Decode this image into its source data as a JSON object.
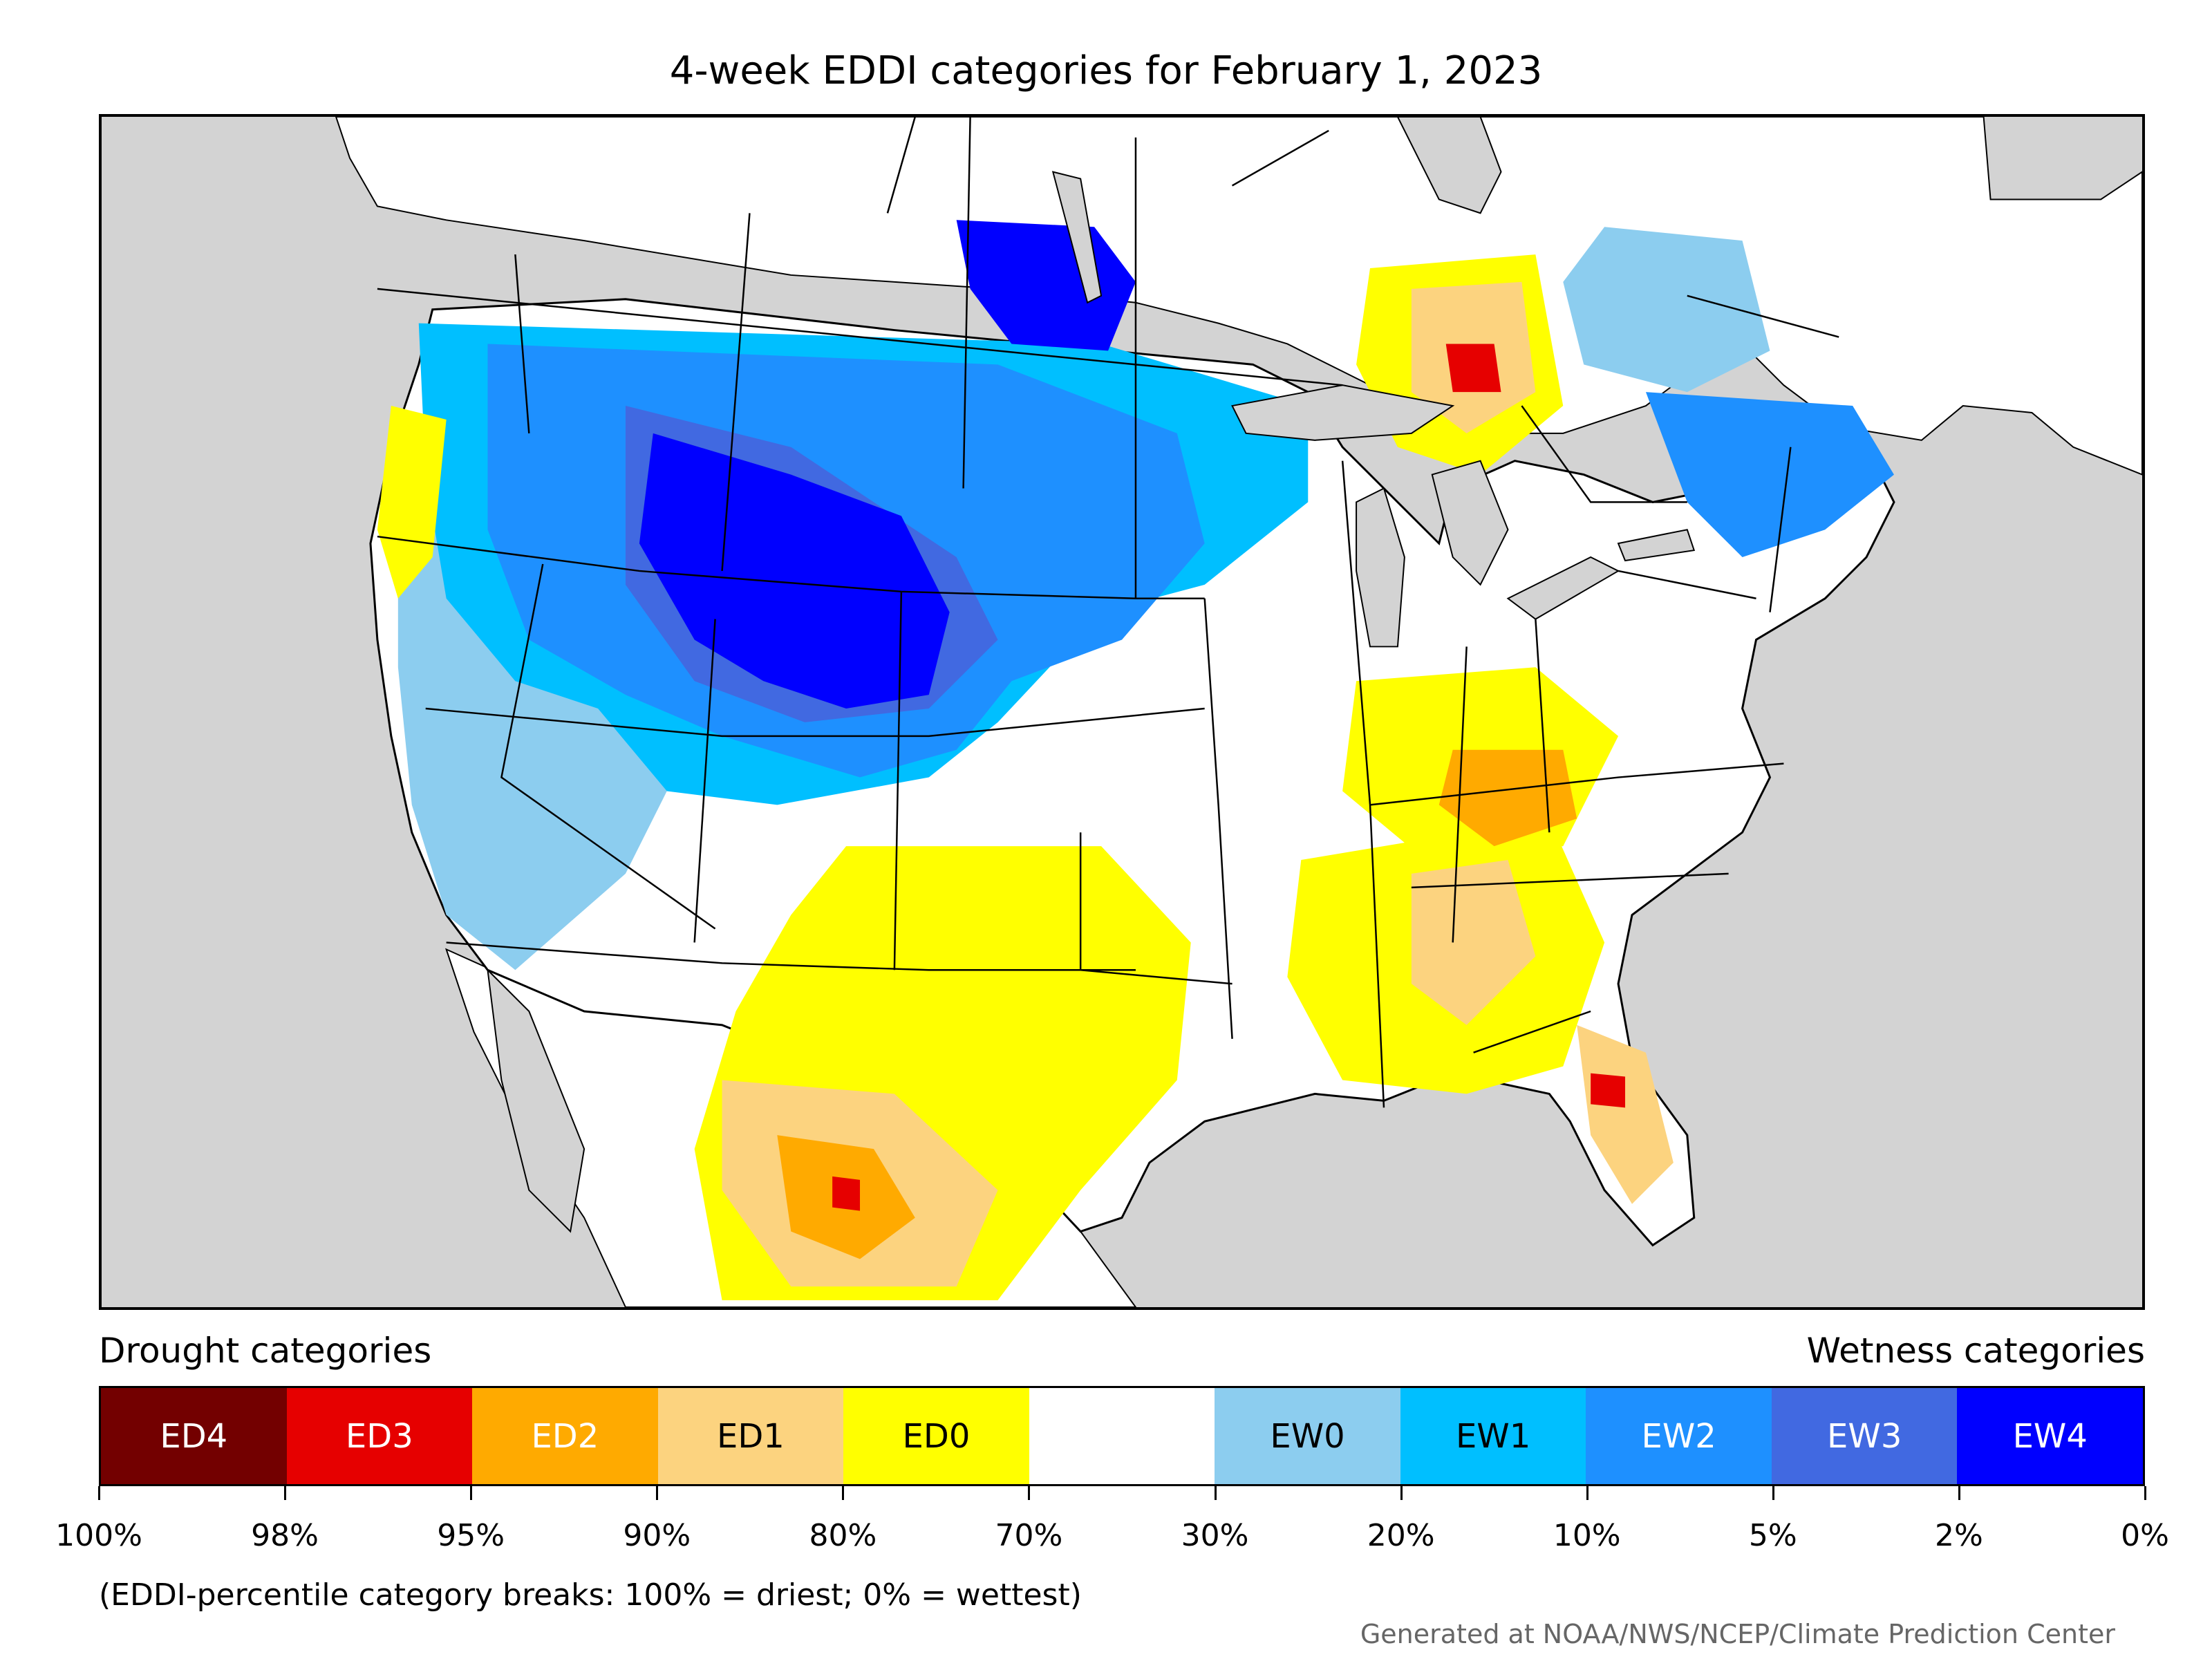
{
  "title": "4-week EDDI categories for February 1, 2023",
  "legend": {
    "drought_title": "Drought categories",
    "wetness_title": "Wetness categories",
    "categories": [
      {
        "label": "ED4",
        "color": "#730000",
        "text_color": "#ffffff"
      },
      {
        "label": "ED3",
        "color": "#e60000",
        "text_color": "#ffffff"
      },
      {
        "label": "ED2",
        "color": "#ffaa00",
        "text_color": "#ffffff"
      },
      {
        "label": "ED1",
        "color": "#fcd37f",
        "text_color": "#000000"
      },
      {
        "label": "ED0",
        "color": "#ffff00",
        "text_color": "#000000"
      },
      {
        "label": "",
        "color": "#ffffff",
        "text_color": "#000000"
      },
      {
        "label": "EW0",
        "color": "#8ccdef",
        "text_color": "#000000"
      },
      {
        "label": "EW1",
        "color": "#00bfff",
        "text_color": "#000000"
      },
      {
        "label": "EW2",
        "color": "#1e90ff",
        "text_color": "#ffffff"
      },
      {
        "label": "EW3",
        "color": "#4169e1",
        "text_color": "#ffffff"
      },
      {
        "label": "EW4",
        "color": "#0000ff",
        "text_color": "#ffffff"
      }
    ],
    "breaks": [
      "100%",
      "98%",
      "95%",
      "90%",
      "80%",
      "70%",
      "30%",
      "20%",
      "10%",
      "5%",
      "2%",
      "0%"
    ],
    "note": "(EDDI-percentile category breaks: 100% = driest; 0% = wettest)"
  },
  "credit": "Generated at NOAA/NWS/NCEP/Climate Prediction Center",
  "map": {
    "background_color": "#d3d3d3",
    "land_color": "#ffffff",
    "border_color": "#000000"
  }
}
